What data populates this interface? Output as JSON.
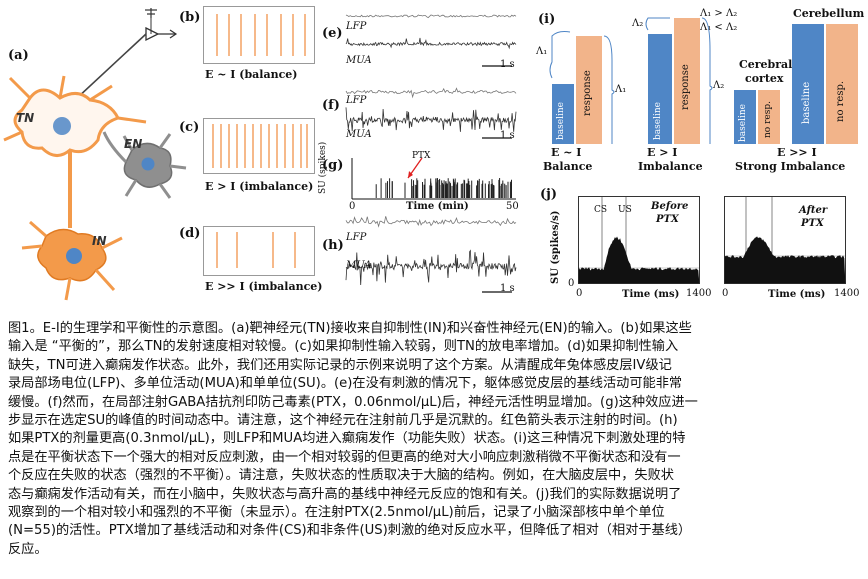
{
  "panels": {
    "a": {
      "label": "(a)",
      "neurons": {
        "tn": "TN",
        "en": "EN",
        "in": "IN"
      }
    },
    "b": {
      "label": "(b)",
      "caption": "E ~ I (balance)"
    },
    "c": {
      "label": "(c)",
      "caption": "E > I (imbalance)"
    },
    "d": {
      "label": "(d)",
      "caption": "E >> I (imbalance)"
    },
    "e": {
      "label": "(e)",
      "lfp": "LFP",
      "mua": "MUA",
      "scale": "1 s"
    },
    "f": {
      "label": "(f)",
      "lfp": "LFP",
      "mua": "MUA",
      "scale": "1 s"
    },
    "g": {
      "label": "(g)",
      "ylabel": "SU (spikes)",
      "marker": "PTX",
      "xlabel": "Time (min)",
      "x_start": "0",
      "x_end": "50"
    },
    "h": {
      "label": "(h)",
      "lfp": "LFP",
      "mua": "MUA",
      "scale": "1 s"
    },
    "i": {
      "label": "(i)",
      "balance": {
        "delta": "Λ₁",
        "delta_right": "Λ₁",
        "bar1": "baseline",
        "bar2": "response",
        "caption1": "E ~ I",
        "caption2": "Balance"
      },
      "imbalance": {
        "delta": "Λ₂",
        "delta_right": "Λ₂",
        "bar1": "baseline",
        "bar2": "response",
        "caption1": "E > I",
        "caption2": "Imbalance"
      },
      "relations": {
        "line1": "Λ₁ > Λ₂",
        "line2": "Λ₁ < Λ₂"
      },
      "cortex": {
        "title1": "Cerebral",
        "title2": "cortex",
        "bar1": "baseline",
        "bar2": "no resp."
      },
      "cerebellum": {
        "title": "Cerebellum",
        "bar1": "baseline",
        "bar2": "no resp."
      },
      "strong": {
        "caption1": "E >> I",
        "caption2": "Strong Imbalance"
      }
    },
    "j": {
      "label": "(j)",
      "ylabel": "SU (spikes/s)",
      "y_zero": "0",
      "cs": "CS",
      "us": "US",
      "before": {
        "line1": "Before",
        "line2": "PTX"
      },
      "after": {
        "line1": "After",
        "line2": "PTX"
      },
      "xlabel": "Time (ms)",
      "x_start": "0",
      "x_end": "1400"
    }
  },
  "caption_lines": [
    "图1。E-I的生理学和平衡性的示意图。(a)靶神经元(TN)接收来自抑制性(IN)和兴奋性神经元(EN)的输入。(b)如果这些",
    "输入是 “平衡的”，那么TN的发射速度相对较慢。(c)如果抑制性输入较弱，则TN的放电率增加。(d)如果抑制性输入",
    "缺失，TN可进入癫痫发作状态。此外，我们还用实际记录的示例来说明了这个方案。从清醒成年兔体感皮层IV级记",
    "录局部场电位(LFP)、多单位活动(MUA)和单单位(SU)。(e)在没有刺激的情况下，躯体感觉皮层的基线活动可能非常",
    "缓慢。(f)然而，在局部注射GABA拮抗剂印防己毒素(PTX，0.06nmol/μL)后，神经元活性明显增加。(g)这种效应进一",
    "步显示在选定SU的峰值的时间动态中。请注意，这个神经元在注射前几乎是沉默的。红色箭头表示注射的时间。(h)",
    "如果PTX的剂量更高(0.3nmol/μL)，则LFP和MUA均进入癫痫发作（功能失败）状态。(i)这三种情况下刺激处理的特",
    "点是在平衡状态下一个强大的相对反应刺激，由一个相对较弱的但更高的绝对大小响应刺激稍微不平衡状态和没有一",
    "个反应在失败的状态（强烈的不平衡）。请注意，失败状态的性质取决于大脑的结构。例如，在大脑皮层中，失败状",
    "态与癫痫发作活动有关，而在小脑中，失败状态与高升高的基线中神经元反应的饱和有关。(j)我们的实际数据说明了",
    "观察到的一个相对较小和强烈的不平衡（未显示）。在注射PTX(2.5nmol/μL)前后，记录了小脑深部核中单个单位",
    "(N=55)的活性。PTX增加了基线活动和对条件(CS)和非条件(US)刺激的绝对反应水平，但降低了相对（相对于基线）",
    "反应。"
  ],
  "colors": {
    "spike_orange": "#f08a3c",
    "baseline_blue": "#4f86c6",
    "response_peach": "#f2b48a",
    "neuron_orange": "#f39a4a",
    "neuron_grey": "#8f8f8f"
  }
}
